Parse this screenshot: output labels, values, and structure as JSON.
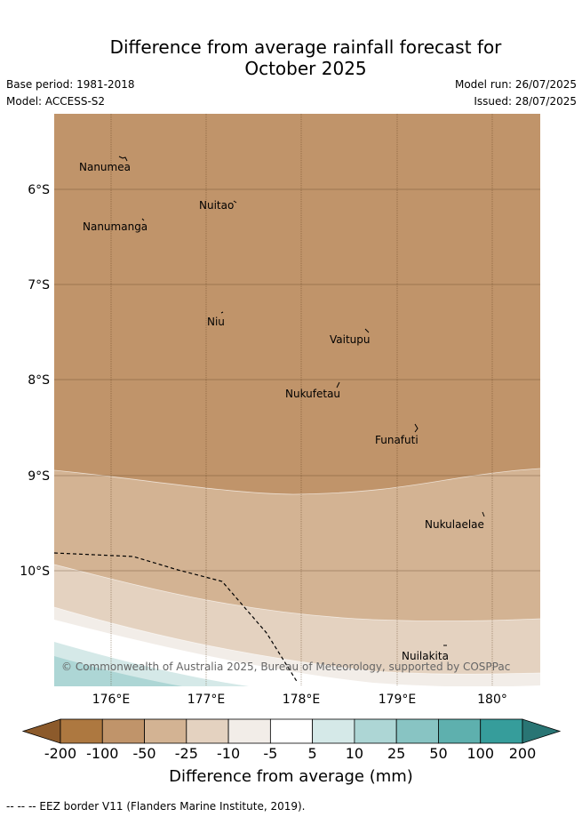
{
  "title": {
    "line1": "Difference from average rainfall forecast for",
    "line2": "October 2025"
  },
  "meta": {
    "base_period": "Base period: 1981-2018",
    "model": "Model: ACCESS-S2",
    "model_run": "Model run: 26/07/2025",
    "issued": "Issued: 28/07/2025"
  },
  "map": {
    "lon_ticks": [
      "176°E",
      "177°E",
      "178°E",
      "179°E",
      "180°"
    ],
    "lat_ticks": [
      "6°S",
      "7°S",
      "8°S",
      "9°S",
      "10°S"
    ],
    "places": [
      {
        "name": "Nanumea"
      },
      {
        "name": "Nuitao"
      },
      {
        "name": "Nanumanga"
      },
      {
        "name": "Niu"
      },
      {
        "name": "Vaitupu"
      },
      {
        "name": "Nukufetau"
      },
      {
        "name": "Funafuti"
      },
      {
        "name": "Nukulaelae"
      },
      {
        "name": "Nuilakita"
      }
    ],
    "copyright": "© Commonwealth of Australia 2025, Bureau of Meteorology, supported by COSPPac"
  },
  "colorbar": {
    "labels": [
      "-200",
      "-100",
      "-50",
      "-25",
      "-10",
      "-5",
      "5",
      "10",
      "25",
      "50",
      "100",
      "200"
    ],
    "colors": [
      "#8c5a2b",
      "#ad7840",
      "#c0946a",
      "#d3b393",
      "#e4d2c0",
      "#f2ede8",
      "#ffffff",
      "#d5e9e8",
      "#add6d5",
      "#88c4c3",
      "#5eb0ae",
      "#369d9b",
      "#297574"
    ],
    "axis_label": "Difference from average (mm)"
  },
  "footnote": "-- -- -- EEZ border V11 (Flanders Marine Institute, 2019)."
}
